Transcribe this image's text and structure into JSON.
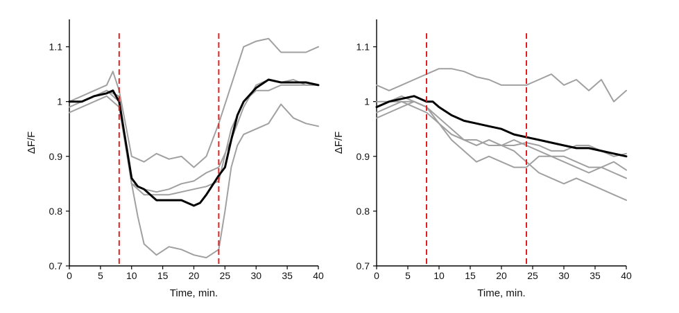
{
  "chart_data": [
    {
      "type": "line",
      "panel": "left",
      "xlabel": "Time, min.",
      "ylabel": "ΔF/F",
      "xlim": [
        0,
        40
      ],
      "ylim": [
        0.7,
        1.15
      ],
      "xticks": [
        0,
        5,
        10,
        15,
        20,
        25,
        30,
        35,
        40
      ],
      "xtick_labels": [
        "0",
        "5",
        "10",
        "15",
        "20",
        "25",
        "30",
        "35",
        "40"
      ],
      "yticks": [
        0.7,
        0.8,
        0.9,
        1.0,
        1.1
      ],
      "ytick_labels": [
        "0.7",
        "0.8",
        "0.9",
        "1",
        "1.1"
      ],
      "vlines": [
        8,
        24
      ],
      "vline_color": "#e02020",
      "series": [
        {
          "name": "trace 1",
          "color": "#a0a0a0",
          "x": [
            0,
            2,
            4,
            6,
            7,
            8,
            9,
            10,
            12,
            14,
            16,
            18,
            20,
            22,
            24,
            26,
            28,
            30,
            32,
            34,
            36,
            38,
            40
          ],
          "y": [
            1.0,
            1.01,
            1.02,
            1.03,
            1.055,
            1.02,
            0.96,
            0.9,
            0.89,
            0.905,
            0.895,
            0.9,
            0.88,
            0.9,
            0.96,
            1.03,
            1.1,
            1.11,
            1.115,
            1.09,
            1.09,
            1.09,
            1.1
          ]
        },
        {
          "name": "trace 2",
          "color": "#a0a0a0",
          "x": [
            0,
            2,
            4,
            6,
            8,
            9,
            10,
            12,
            14,
            16,
            18,
            20,
            22,
            24,
            26,
            28,
            30,
            32,
            34,
            36,
            38,
            40
          ],
          "y": [
            0.99,
            1.0,
            1.01,
            1.02,
            1.01,
            0.93,
            0.85,
            0.84,
            0.835,
            0.84,
            0.85,
            0.855,
            0.87,
            0.88,
            0.93,
            0.99,
            1.03,
            1.04,
            1.035,
            1.04,
            1.03,
            1.03
          ]
        },
        {
          "name": "trace 3",
          "color": "#a0a0a0",
          "x": [
            0,
            2,
            4,
            6,
            8,
            9,
            10,
            11,
            12,
            14,
            16,
            18,
            20,
            22,
            24,
            25,
            26,
            27,
            28,
            30,
            32,
            34,
            36,
            38,
            40
          ],
          "y": [
            0.98,
            0.99,
            1.0,
            1.01,
            0.99,
            0.92,
            0.85,
            0.79,
            0.74,
            0.72,
            0.735,
            0.73,
            0.72,
            0.715,
            0.73,
            0.8,
            0.88,
            0.92,
            0.94,
            0.95,
            0.96,
            0.995,
            0.97,
            0.96,
            0.955
          ]
        },
        {
          "name": "trace 4",
          "color": "#a0a0a0",
          "x": [
            0,
            2,
            4,
            6,
            8,
            9,
            10,
            12,
            14,
            16,
            18,
            20,
            22,
            24,
            26,
            28,
            30,
            32,
            34,
            36,
            38,
            40
          ],
          "y": [
            1.0,
            1.0,
            1.01,
            1.02,
            1.0,
            0.93,
            0.85,
            0.83,
            0.83,
            0.83,
            0.835,
            0.84,
            0.845,
            0.855,
            0.95,
            1.0,
            1.02,
            1.02,
            1.03,
            1.03,
            1.03,
            1.03
          ]
        },
        {
          "name": "mean",
          "color": "#000000",
          "x": [
            0,
            2,
            4,
            6,
            7,
            8,
            9,
            10,
            11,
            12,
            14,
            16,
            18,
            20,
            21,
            22,
            24,
            25,
            26,
            27,
            28,
            30,
            32,
            34,
            36,
            38,
            40
          ],
          "y": [
            1.0,
            1.0,
            1.01,
            1.015,
            1.02,
            1.0,
            0.93,
            0.86,
            0.845,
            0.84,
            0.82,
            0.82,
            0.82,
            0.81,
            0.815,
            0.83,
            0.865,
            0.88,
            0.93,
            0.975,
            1.0,
            1.025,
            1.04,
            1.035,
            1.035,
            1.035,
            1.03
          ]
        }
      ]
    },
    {
      "type": "line",
      "panel": "right",
      "xlabel": "Time, min.",
      "ylabel": "ΔF/F",
      "xlim": [
        0,
        40
      ],
      "ylim": [
        0.7,
        1.15
      ],
      "xticks": [
        0,
        5,
        10,
        15,
        20,
        25,
        30,
        35,
        40
      ],
      "xtick_labels": [
        "0",
        "5",
        "10",
        "15",
        "20",
        "25",
        "30",
        "35",
        "40"
      ],
      "yticks": [
        0.7,
        0.8,
        0.9,
        1.0,
        1.1
      ],
      "ytick_labels": [
        "0.7",
        "0.8",
        "0.9",
        "1",
        "1.1"
      ],
      "vlines": [
        8,
        24
      ],
      "vline_color": "#e02020",
      "series": [
        {
          "name": "trace 1",
          "color": "#a0a0a0",
          "x": [
            0,
            2,
            4,
            6,
            8,
            10,
            12,
            14,
            16,
            18,
            20,
            22,
            24,
            26,
            28,
            30,
            32,
            34,
            36,
            38,
            40
          ],
          "y": [
            1.03,
            1.02,
            1.03,
            1.04,
            1.05,
            1.06,
            1.06,
            1.055,
            1.045,
            1.04,
            1.03,
            1.03,
            1.03,
            1.04,
            1.05,
            1.03,
            1.04,
            1.02,
            1.04,
            1.0,
            1.02
          ]
        },
        {
          "name": "trace 2",
          "color": "#a0a0a0",
          "x": [
            0,
            2,
            4,
            6,
            8,
            10,
            12,
            14,
            16,
            18,
            20,
            22,
            24,
            26,
            28,
            30,
            32,
            34,
            36,
            38,
            40
          ],
          "y": [
            1.0,
            1.0,
            1.01,
            1.0,
            0.99,
            0.96,
            0.94,
            0.93,
            0.93,
            0.92,
            0.92,
            0.92,
            0.925,
            0.92,
            0.91,
            0.91,
            0.92,
            0.92,
            0.91,
            0.9,
            0.905
          ]
        },
        {
          "name": "trace 3",
          "color": "#a0a0a0",
          "x": [
            0,
            2,
            4,
            6,
            8,
            10,
            12,
            14,
            16,
            18,
            20,
            22,
            24,
            26,
            28,
            30,
            32,
            34,
            36,
            38,
            40
          ],
          "y": [
            0.98,
            0.99,
            1.0,
            0.99,
            0.98,
            0.96,
            0.93,
            0.91,
            0.89,
            0.9,
            0.89,
            0.88,
            0.88,
            0.9,
            0.9,
            0.89,
            0.88,
            0.87,
            0.88,
            0.87,
            0.86
          ]
        },
        {
          "name": "trace 4",
          "color": "#a0a0a0",
          "x": [
            0,
            2,
            4,
            6,
            8,
            10,
            12,
            14,
            16,
            18,
            20,
            22,
            24,
            26,
            28,
            30,
            32,
            34,
            36,
            38,
            40
          ],
          "y": [
            0.97,
            0.98,
            0.99,
            1.0,
            0.99,
            0.96,
            0.94,
            0.93,
            0.92,
            0.93,
            0.92,
            0.91,
            0.89,
            0.87,
            0.86,
            0.85,
            0.86,
            0.85,
            0.84,
            0.83,
            0.82
          ]
        },
        {
          "name": "trace 5",
          "color": "#a0a0a0",
          "x": [
            0,
            2,
            4,
            6,
            8,
            10,
            12,
            14,
            16,
            18,
            20,
            22,
            24,
            26,
            28,
            30,
            32,
            34,
            36,
            38,
            40
          ],
          "y": [
            0.99,
            1.0,
            1.0,
            1.0,
            0.99,
            0.97,
            0.95,
            0.93,
            0.92,
            0.93,
            0.92,
            0.93,
            0.92,
            0.91,
            0.9,
            0.9,
            0.89,
            0.88,
            0.88,
            0.89,
            0.875
          ]
        },
        {
          "name": "mean",
          "color": "#000000",
          "x": [
            0,
            2,
            4,
            6,
            8,
            9,
            10,
            12,
            14,
            16,
            18,
            20,
            22,
            24,
            26,
            28,
            30,
            32,
            34,
            36,
            38,
            40
          ],
          "y": [
            0.99,
            1.0,
            1.005,
            1.01,
            1.0,
            1.0,
            0.99,
            0.975,
            0.965,
            0.96,
            0.955,
            0.95,
            0.94,
            0.935,
            0.93,
            0.925,
            0.92,
            0.915,
            0.915,
            0.91,
            0.905,
            0.9
          ]
        }
      ]
    }
  ]
}
